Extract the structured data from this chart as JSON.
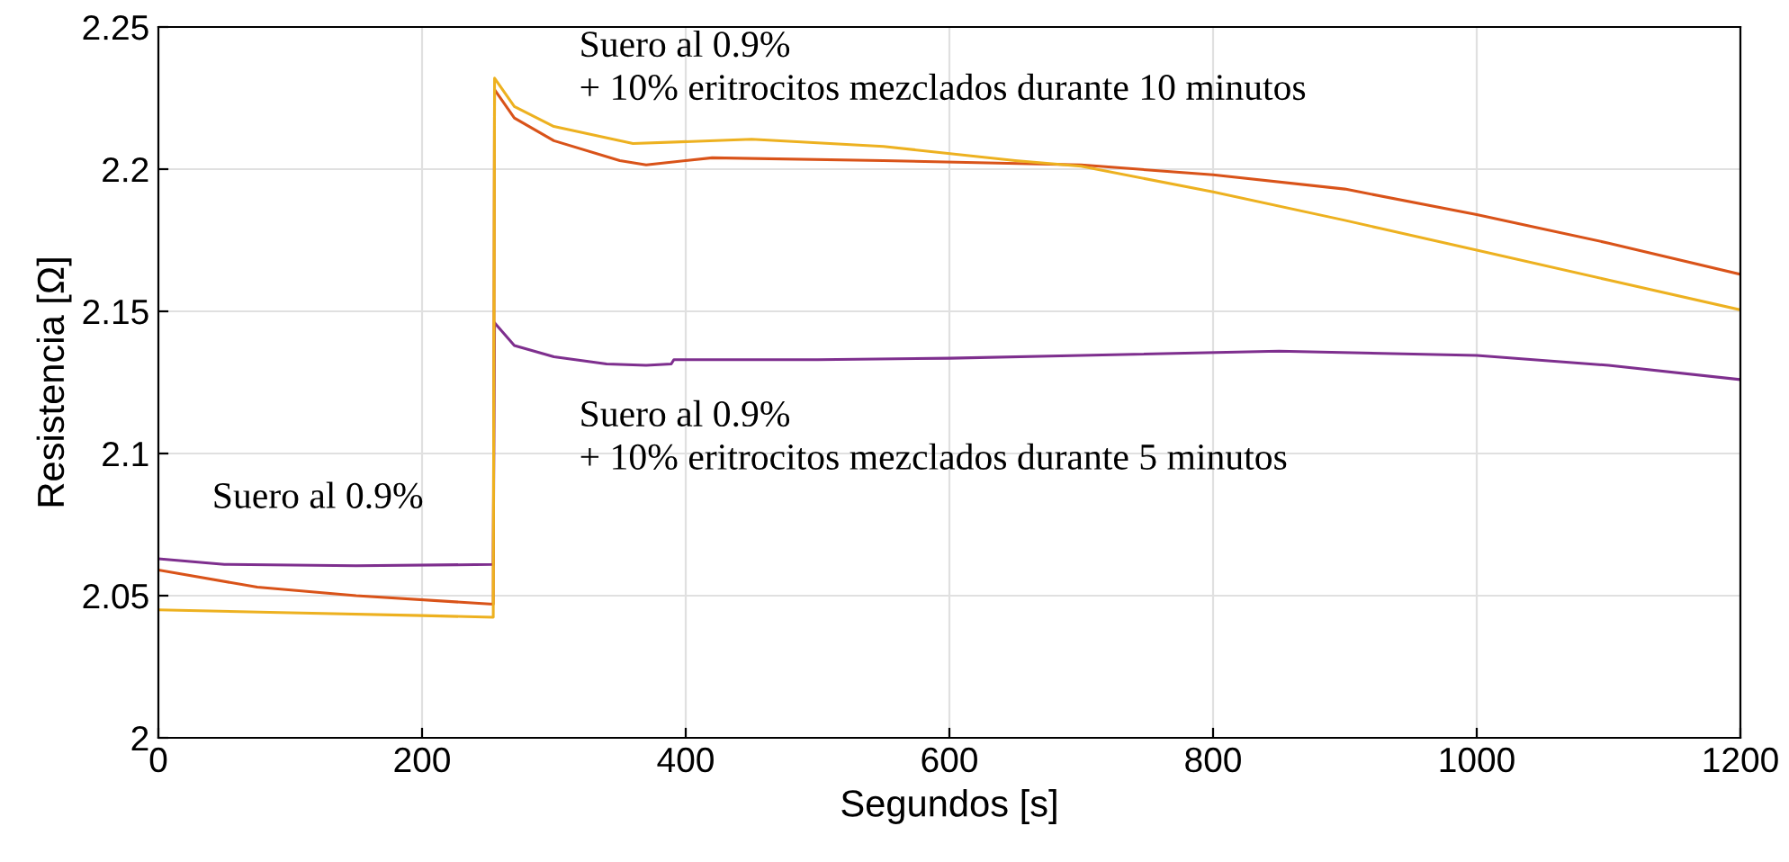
{
  "chart_data": {
    "type": "line",
    "xlabel": "Segundos [s]",
    "ylabel": "Resistencia [Ω]",
    "xlim": [
      0,
      1200
    ],
    "ylim": [
      2,
      2.25
    ],
    "xticks": [
      0,
      200,
      400,
      600,
      800,
      1000,
      1200
    ],
    "yticks": [
      2,
      2.05,
      2.1,
      2.15,
      2.2,
      2.25
    ],
    "grid": true,
    "series": [
      {
        "color": "#7e2f8e",
        "x": [
          0,
          50,
          150,
          254,
          255,
          270,
          300,
          340,
          370,
          389,
          391,
          500,
          600,
          700,
          850,
          1000,
          1100,
          1200
        ],
        "values": [
          2.063,
          2.061,
          2.0605,
          2.061,
          2.146,
          2.138,
          2.134,
          2.1315,
          2.131,
          2.1315,
          2.133,
          2.133,
          2.1335,
          2.1345,
          2.136,
          2.1345,
          2.131,
          2.126
        ]
      },
      {
        "color": "#d95319",
        "x": [
          0,
          75,
          150,
          254,
          255,
          270,
          300,
          350,
          370,
          420,
          550,
          700,
          800,
          900,
          1000,
          1100,
          1200
        ],
        "values": [
          2.059,
          2.053,
          2.05,
          2.047,
          2.228,
          2.218,
          2.21,
          2.203,
          2.2015,
          2.204,
          2.203,
          2.2015,
          2.198,
          2.193,
          2.184,
          2.174,
          2.163
        ]
      },
      {
        "color": "#edb120",
        "x": [
          0,
          100,
          200,
          254,
          255,
          270,
          300,
          360,
          450,
          550,
          650,
          700,
          800,
          900,
          1000,
          1100,
          1200
        ],
        "values": [
          2.045,
          2.044,
          2.043,
          2.0424,
          2.232,
          2.222,
          2.215,
          2.209,
          2.2105,
          2.208,
          2.203,
          2.201,
          2.192,
          2.182,
          2.1715,
          2.161,
          2.1505
        ]
      }
    ],
    "annotations": [
      "Suero al 0.9%\n+ 10% eritrocitos mezclados durante 10 minutos",
      "Suero al 0.9%\n+ 10% eritrocitos mezclados durante 5 minutos",
      "Suero al 0.9%"
    ]
  }
}
